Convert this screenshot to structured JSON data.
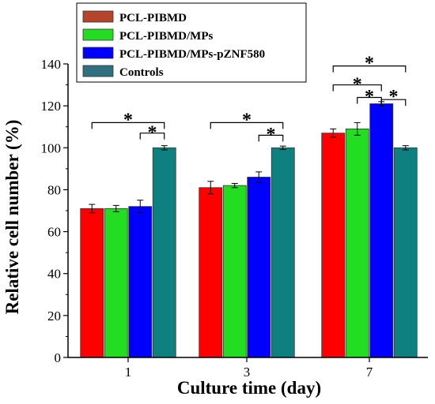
{
  "chart_data": {
    "type": "bar",
    "xlabel": "Culture time (day)",
    "ylabel": "Relative cell number (%)",
    "ylim": [
      0,
      140
    ],
    "yticks": [
      0,
      20,
      40,
      60,
      80,
      100,
      120,
      140
    ],
    "categories": [
      "1",
      "3",
      "7"
    ],
    "series": [
      {
        "name": "PCL-PIBMD",
        "color": "#ff0000",
        "legend_color": "#b5442c",
        "values": [
          71,
          81,
          107
        ],
        "errors": [
          2,
          3,
          2
        ]
      },
      {
        "name": "PCL-PIBMD/MPs",
        "color": "#22dd22",
        "legend_color": "#22dd22",
        "values": [
          71,
          82,
          109
        ],
        "errors": [
          1.5,
          1,
          3
        ]
      },
      {
        "name": "PCL-PIBMD/MPs-pZNF580",
        "color": "#0000ff",
        "legend_color": "#0000ff",
        "values": [
          72,
          86,
          121
        ],
        "errors": [
          3,
          2.5,
          1
        ]
      },
      {
        "name": "Controls",
        "color": "#0e8080",
        "legend_color": "#2f6f7f",
        "values": [
          100,
          100,
          100
        ],
        "errors": [
          1,
          0.8,
          1
        ]
      }
    ],
    "significance_marker": "*",
    "significance": [
      {
        "group": 0,
        "from": 0,
        "to": 3,
        "star_value": 115,
        "line_value": 112
      },
      {
        "group": 0,
        "from": 2,
        "to": 3,
        "star_value": 109,
        "line_value": 107
      },
      {
        "group": 1,
        "from": 0,
        "to": 3,
        "star_value": 115,
        "line_value": 112
      },
      {
        "group": 1,
        "from": 2,
        "to": 3,
        "star_value": 108,
        "line_value": 106
      },
      {
        "group": 2,
        "from": 0,
        "to": 3,
        "star_value": 142,
        "line_value": 139
      },
      {
        "group": 2,
        "from": 0,
        "to": 2,
        "star_value": 132,
        "line_value": 130
      },
      {
        "group": 2,
        "from": 1,
        "to": 2,
        "star_value": 126,
        "line_value": 124
      },
      {
        "group": 2,
        "from": 2,
        "to": 3,
        "star_value": 126,
        "line_value": 123
      }
    ],
    "legend": {
      "position": "top-left"
    },
    "grid": false
  }
}
